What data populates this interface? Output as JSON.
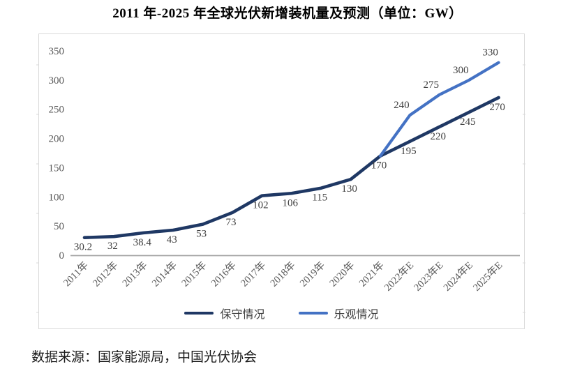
{
  "title": "2011 年-2025 年全球光伏新增装机量及预测（单位：GW）",
  "source_note": "数据来源：国家能源局，中国光伏协会",
  "chart_data": {
    "type": "line",
    "title": "2011 年-2025 年全球光伏新增装机量及预测（单位：GW）",
    "unit": "GW",
    "categories": [
      "2011年",
      "2012年",
      "2013年",
      "2014年",
      "2015年",
      "2016年",
      "2017年",
      "2018年",
      "2019年",
      "2020年",
      "2021年",
      "2022年E",
      "2023年E",
      "2024年E",
      "2025年E"
    ],
    "series": [
      {
        "name": "保守情况",
        "color": "#1F3864",
        "label_position": "below",
        "values": [
          30.2,
          32,
          38.4,
          43,
          53,
          73,
          102,
          106,
          115,
          130,
          170,
          195,
          220,
          245,
          270
        ],
        "point_labels": [
          "30.2",
          "32",
          "38.4",
          "43",
          "53",
          "73",
          "102",
          "106",
          "115",
          "130",
          "170",
          "195",
          "220",
          "245",
          "270"
        ]
      },
      {
        "name": "乐观情况",
        "color": "#4472C4",
        "label_position": "above",
        "values": [
          null,
          null,
          null,
          null,
          null,
          null,
          null,
          null,
          null,
          null,
          170,
          240,
          275,
          300,
          330
        ],
        "point_labels": [
          null,
          null,
          null,
          null,
          null,
          null,
          null,
          null,
          null,
          null,
          null,
          "240",
          "275",
          "300",
          "330"
        ]
      }
    ],
    "xlabel": "",
    "ylabel": "",
    "ylim": [
      0,
      350
    ],
    "yticks": [
      0,
      50,
      100,
      150,
      200,
      250,
      300,
      350
    ],
    "grid": false,
    "legend_position": "bottom-center",
    "axis_color": "#A6A6A6",
    "border_color": "#D9D9D9",
    "tick_label_color": "#595959",
    "data_label_color": "#3F3F3F"
  }
}
